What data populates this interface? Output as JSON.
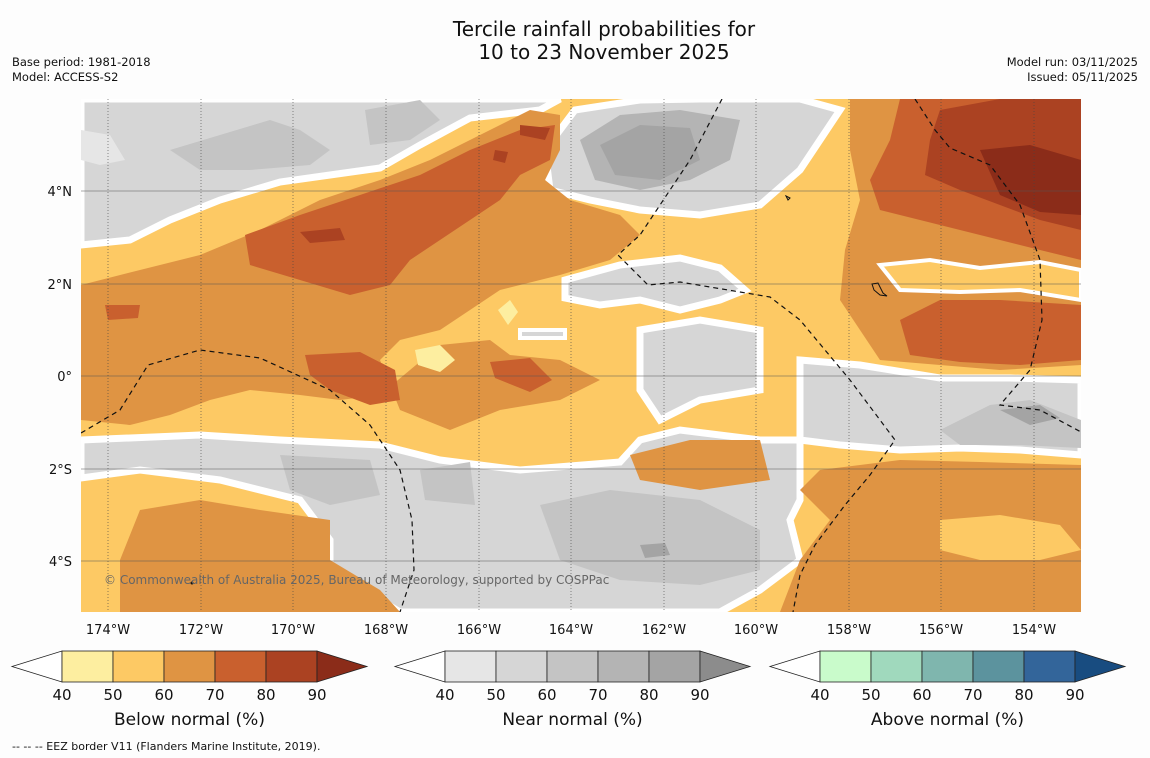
{
  "title_line1": "Tercile rainfall probabilities for",
  "title_line2": "10 to 23 November 2025",
  "base_period": "Base period: 1981-2018",
  "model": "Model: ACCESS-S2",
  "model_run": "Model run: 03/11/2025",
  "issued": "Issued: 05/11/2025",
  "copyright": "© Commonwealth of Australia 2025, Bureau of Meteorology, supported by COSPPac",
  "footer": "-- -- -- EEZ border V11 (Flanders Marine Institute, 2019).",
  "lon_labels": [
    "174°W",
    "172°W",
    "170°W",
    "168°W",
    "166°W",
    "164°W",
    "162°W",
    "160°W",
    "158°W",
    "156°W",
    "154°W"
  ],
  "lat_labels": [
    "4°N",
    "2°N",
    "0°",
    "2°S",
    "4°S"
  ],
  "colorbars": [
    {
      "title": "Below normal (%)",
      "ticks": [
        "40",
        "50",
        "60",
        "70",
        "80",
        "90"
      ],
      "colors": [
        "#fdeea0",
        "#fdc964",
        "#df9443",
        "#c9602e",
        "#ab4222",
        "#8b2c19"
      ]
    },
    {
      "title": "Near normal (%)",
      "ticks": [
        "40",
        "50",
        "60",
        "70",
        "80",
        "90"
      ],
      "colors": [
        "#e6e6e6",
        "#d6d6d6",
        "#c4c4c4",
        "#b4b4b4",
        "#a4a4a4",
        "#8c8c8c"
      ]
    },
    {
      "title": "Above normal (%)",
      "ticks": [
        "40",
        "50",
        "60",
        "70",
        "80",
        "90"
      ],
      "colors": [
        "#c9fbcb",
        "#a0d9bd",
        "#7fb6ae",
        "#5c939e",
        "#33659a",
        "#184c80"
      ]
    }
  ]
}
